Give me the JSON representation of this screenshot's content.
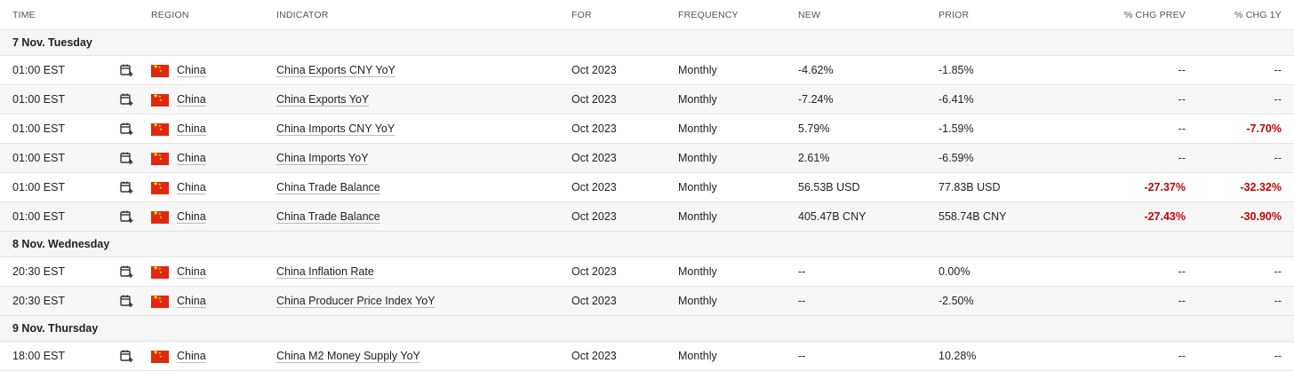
{
  "headers": {
    "time": "TIME",
    "region": "REGION",
    "indicator": "INDICATOR",
    "for": "FOR",
    "frequency": "FREQUENCY",
    "new": "NEW",
    "prior": "PRIOR",
    "chg_prev": "% CHG PREV",
    "chg_1y": "% CHG 1Y"
  },
  "icons": {
    "calendar": "calendar-add-icon",
    "flag": "china-flag-icon"
  },
  "colors": {
    "negative": "#cc0000",
    "row_alt": "#f7f7f7"
  },
  "days": [
    {
      "label": "7 Nov. Tuesday",
      "rows": [
        {
          "time": "01:00 EST",
          "region": "China",
          "indicator": "China Exports CNY YoY",
          "for": "Oct 2023",
          "frequency": "Monthly",
          "new": "-4.62%",
          "prior": "-1.85%",
          "chg_prev": "--",
          "chg_1y": "--"
        },
        {
          "time": "01:00 EST",
          "region": "China",
          "indicator": "China Exports YoY",
          "for": "Oct 2023",
          "frequency": "Monthly",
          "new": "-7.24%",
          "prior": "-6.41%",
          "chg_prev": "--",
          "chg_1y": "--"
        },
        {
          "time": "01:00 EST",
          "region": "China",
          "indicator": "China Imports CNY YoY",
          "for": "Oct 2023",
          "frequency": "Monthly",
          "new": "5.79%",
          "prior": "-1.59%",
          "chg_prev": "--",
          "chg_1y": "-7.70%"
        },
        {
          "time": "01:00 EST",
          "region": "China",
          "indicator": "China Imports YoY",
          "for": "Oct 2023",
          "frequency": "Monthly",
          "new": "2.61%",
          "prior": "-6.59%",
          "chg_prev": "--",
          "chg_1y": "--"
        },
        {
          "time": "01:00 EST",
          "region": "China",
          "indicator": "China Trade Balance",
          "for": "Oct 2023",
          "frequency": "Monthly",
          "new": "56.53B USD",
          "prior": "77.83B USD",
          "chg_prev": "-27.37%",
          "chg_1y": "-32.32%"
        },
        {
          "time": "01:00 EST",
          "region": "China",
          "indicator": "China Trade Balance",
          "for": "Oct 2023",
          "frequency": "Monthly",
          "new": "405.47B CNY",
          "prior": "558.74B CNY",
          "chg_prev": "-27.43%",
          "chg_1y": "-30.90%"
        }
      ]
    },
    {
      "label": "8 Nov. Wednesday",
      "rows": [
        {
          "time": "20:30 EST",
          "region": "China",
          "indicator": "China Inflation Rate",
          "for": "Oct 2023",
          "frequency": "Monthly",
          "new": "--",
          "prior": "0.00%",
          "chg_prev": "--",
          "chg_1y": "--"
        },
        {
          "time": "20:30 EST",
          "region": "China",
          "indicator": "China Producer Price Index YoY",
          "for": "Oct 2023",
          "frequency": "Monthly",
          "new": "--",
          "prior": "-2.50%",
          "chg_prev": "--",
          "chg_1y": "--"
        }
      ]
    },
    {
      "label": "9 Nov. Thursday",
      "rows": [
        {
          "time": "18:00 EST",
          "region": "China",
          "indicator": "China M2 Money Supply YoY",
          "for": "Oct 2023",
          "frequency": "Monthly",
          "new": "--",
          "prior": "10.28%",
          "chg_prev": "--",
          "chg_1y": "--"
        }
      ]
    }
  ]
}
